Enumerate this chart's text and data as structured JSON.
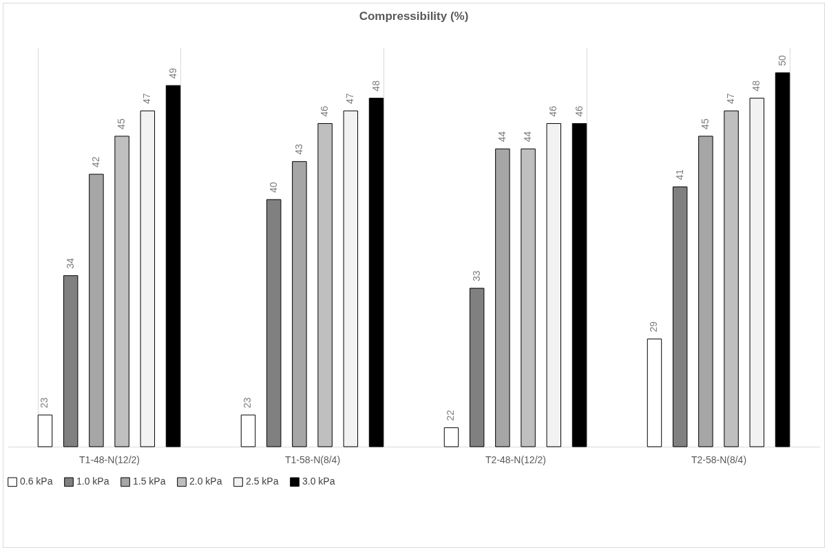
{
  "chart_data": {
    "type": "bar",
    "title": "Compressibility (%)",
    "categories": [
      "T1-48-N(12/2)",
      "T1-58-N(8/4)",
      "T2-48-N(12/2)",
      "T2-58-N(8/4)"
    ],
    "series": [
      {
        "name": "0.6 kPa",
        "color": "#ffffff",
        "values": [
          23,
          23,
          22,
          29
        ]
      },
      {
        "name": "1.0 kPa",
        "color": "#808080",
        "values": [
          34,
          40,
          33,
          41
        ]
      },
      {
        "name": "1.5 kPa",
        "color": "#a6a6a6",
        "values": [
          42,
          43,
          44,
          45
        ]
      },
      {
        "name": "2.0 kPa",
        "color": "#bfbfbf",
        "values": [
          45,
          46,
          44,
          47
        ]
      },
      {
        "name": "2.5 kPa",
        "color": "#f2f2f2",
        "values": [
          47,
          47,
          46,
          48
        ]
      },
      {
        "name": "3.0 kPa",
        "color": "#000000",
        "values": [
          49,
          48,
          46,
          50
        ]
      }
    ],
    "ylim": [
      20.5,
      52
    ],
    "data_labels": true,
    "grid": "x",
    "legend": "bottom",
    "tick_labels": "x"
  }
}
